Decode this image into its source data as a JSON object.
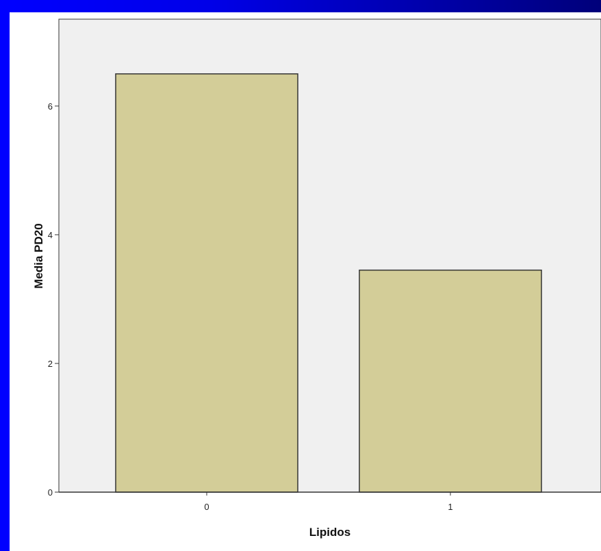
{
  "chart_data": {
    "type": "bar",
    "categories": [
      "0",
      "1"
    ],
    "values": [
      6.5,
      3.45
    ],
    "xlabel": "Lipidos",
    "ylabel": "Media PD20",
    "ylim": [
      0,
      7.35
    ],
    "yticks": [
      "0",
      "2",
      "4",
      "6"
    ],
    "grid": false,
    "colors": {
      "frame_gradient_start": "#0000ff",
      "frame_gradient_end": "#00007a",
      "plot_background": "#f0f0f0",
      "bar_fill": "#d3cd98",
      "bar_stroke": "#333333"
    }
  }
}
